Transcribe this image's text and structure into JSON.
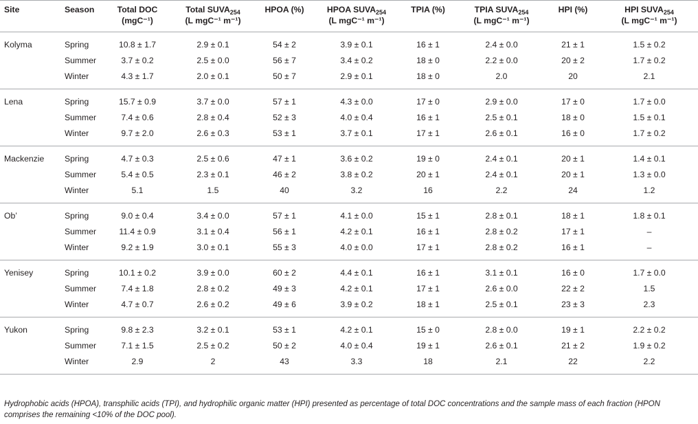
{
  "table": {
    "headers": [
      {
        "line1": "Site",
        "line2": ""
      },
      {
        "line1": "Season",
        "line2": ""
      },
      {
        "line1": "Total DOC",
        "line2": "(mgC⁻¹)"
      },
      {
        "line1": "Total SUVA",
        "sub": "254",
        "line2": "(L mgC⁻¹ m⁻¹)"
      },
      {
        "line1": "HPOA (%)",
        "line2": ""
      },
      {
        "line1": "HPOA SUVA",
        "sub": "254",
        "line2": "(L mgC⁻¹ m⁻¹)"
      },
      {
        "line1": "TPIA (%)",
        "line2": ""
      },
      {
        "line1": "TPIA SUVA",
        "sub": "254",
        "line2": "(L mgC⁻¹ m⁻¹)"
      },
      {
        "line1": "HPI (%)",
        "line2": ""
      },
      {
        "line1": "HPI SUVA",
        "sub": "254",
        "line2": "(L mgC⁻¹ m⁻¹)"
      }
    ],
    "groups": [
      {
        "site": "Kolyma",
        "rows": [
          [
            "Spring",
            "10.8 ± 1.7",
            "2.9 ± 0.1",
            "54 ± 2",
            "3.9 ± 0.1",
            "16 ± 1",
            "2.4 ± 0.0",
            "21 ± 1",
            "1.5 ± 0.2"
          ],
          [
            "Summer",
            "3.7 ± 0.2",
            "2.5 ± 0.0",
            "56 ± 7",
            "3.4 ± 0.2",
            "18 ± 0",
            "2.2 ± 0.0",
            "20 ± 2",
            "1.7 ± 0.2"
          ],
          [
            "Winter",
            "4.3 ± 1.7",
            "2.0 ± 0.1",
            "50 ± 7",
            "2.9 ± 0.1",
            "18 ± 0",
            "2.0",
            "20",
            "2.1"
          ]
        ]
      },
      {
        "site": "Lena",
        "rows": [
          [
            "Spring",
            "15.7 ± 0.9",
            "3.7 ± 0.0",
            "57 ± 1",
            "4.3 ± 0.0",
            "17 ± 0",
            "2.9 ± 0.0",
            "17 ± 0",
            "1.7 ± 0.0"
          ],
          [
            "Summer",
            "7.4 ± 0.6",
            "2.8 ± 0.4",
            "52 ± 3",
            "4.0 ± 0.4",
            "16 ± 1",
            "2.5 ± 0.1",
            "18 ± 0",
            "1.5 ± 0.1"
          ],
          [
            "Winter",
            "9.7 ± 2.0",
            "2.6 ± 0.3",
            "53 ± 1",
            "3.7 ± 0.1",
            "17 ± 1",
            "2.6 ± 0.1",
            "16 ± 0",
            "1.7 ± 0.2"
          ]
        ]
      },
      {
        "site": "Mackenzie",
        "rows": [
          [
            "Spring",
            "4.7 ± 0.3",
            "2.5 ± 0.6",
            "47 ± 1",
            "3.6 ± 0.2",
            "19 ± 0",
            "2.4 ± 0.1",
            "20 ± 1",
            "1.4 ± 0.1"
          ],
          [
            "Summer",
            "5.4 ± 0.5",
            "2.3 ± 0.1",
            "46 ± 2",
            "3.8 ± 0.2",
            "20 ± 1",
            "2.4 ± 0.1",
            "20 ± 1",
            "1.3 ± 0.0"
          ],
          [
            "Winter",
            "5.1",
            "1.5",
            "40",
            "3.2",
            "16",
            "2.2",
            "24",
            "1.2"
          ]
        ]
      },
      {
        "site": "Ob’",
        "rows": [
          [
            "Spring",
            "9.0 ± 0.4",
            "3.4 ± 0.0",
            "57 ± 1",
            "4.1 ± 0.0",
            "15 ± 1",
            "2.8 ± 0.1",
            "18 ± 1",
            "1.8 ± 0.1"
          ],
          [
            "Summer",
            "11.4 ± 0.9",
            "3.1 ± 0.4",
            "56 ± 1",
            "4.2 ± 0.1",
            "16 ± 1",
            "2.8 ± 0.2",
            "17 ± 1",
            "–"
          ],
          [
            "Winter",
            "9.2 ± 1.9",
            "3.0 ± 0.1",
            "55 ± 3",
            "4.0 ± 0.0",
            "17 ± 1",
            "2.8 ± 0.2",
            "16 ± 1",
            "–"
          ]
        ]
      },
      {
        "site": "Yenisey",
        "rows": [
          [
            "Spring",
            "10.1 ± 0.2",
            "3.9 ± 0.0",
            "60 ± 2",
            "4.4 ± 0.1",
            "16 ± 1",
            "3.1 ± 0.1",
            "16 ± 0",
            "1.7 ± 0.0"
          ],
          [
            "Summer",
            "7.4 ± 1.8",
            "2.8 ± 0.2",
            "49 ± 3",
            "4.2 ± 0.1",
            "17 ± 1",
            "2.6 ± 0.0",
            "22 ± 2",
            "1.5"
          ],
          [
            "Winter",
            "4.7 ± 0.7",
            "2.6 ± 0.2",
            "49 ± 6",
            "3.9 ± 0.2",
            "18 ± 1",
            "2.5 ± 0.1",
            "23 ± 3",
            "2.3"
          ]
        ]
      },
      {
        "site": "Yukon",
        "rows": [
          [
            "Spring",
            "9.8 ± 2.3",
            "3.2 ± 0.1",
            "53 ± 1",
            "4.2 ± 0.1",
            "15 ± 0",
            "2.8 ± 0.0",
            "19 ± 1",
            "2.2 ± 0.2"
          ],
          [
            "Summer",
            "7.1 ± 1.5",
            "2.5 ± 0.2",
            "50 ± 2",
            "4.0 ± 0.4",
            "19 ± 1",
            "2.6 ± 0.1",
            "21 ± 2",
            "1.9 ± 0.2"
          ],
          [
            "Winter",
            "2.9",
            "2",
            "43",
            "3.3",
            "18",
            "2.1",
            "22",
            "2.2"
          ]
        ]
      }
    ]
  },
  "footnote": "Hydrophobic acids (HPOA), transphilic acids (TPI), and hydrophilic organic matter (HPI) presented as percentage of total DOC concentrations and the sample mass of each fraction (HPON comprises the remaining <10% of the DOC pool)."
}
